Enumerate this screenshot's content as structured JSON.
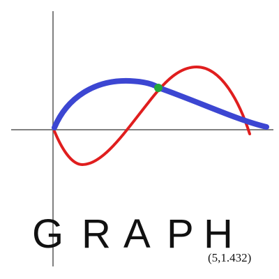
{
  "title_letters": [
    "G",
    "R",
    "A",
    "P",
    "H"
  ],
  "point_label": "(5,1.432)",
  "colors": {
    "axes": "#808080",
    "blue_curve": "#3c46d2",
    "red_curve": "#e01e1e",
    "intersection": "#22a83a",
    "text": "#111111",
    "background": "#ffffff"
  }
}
